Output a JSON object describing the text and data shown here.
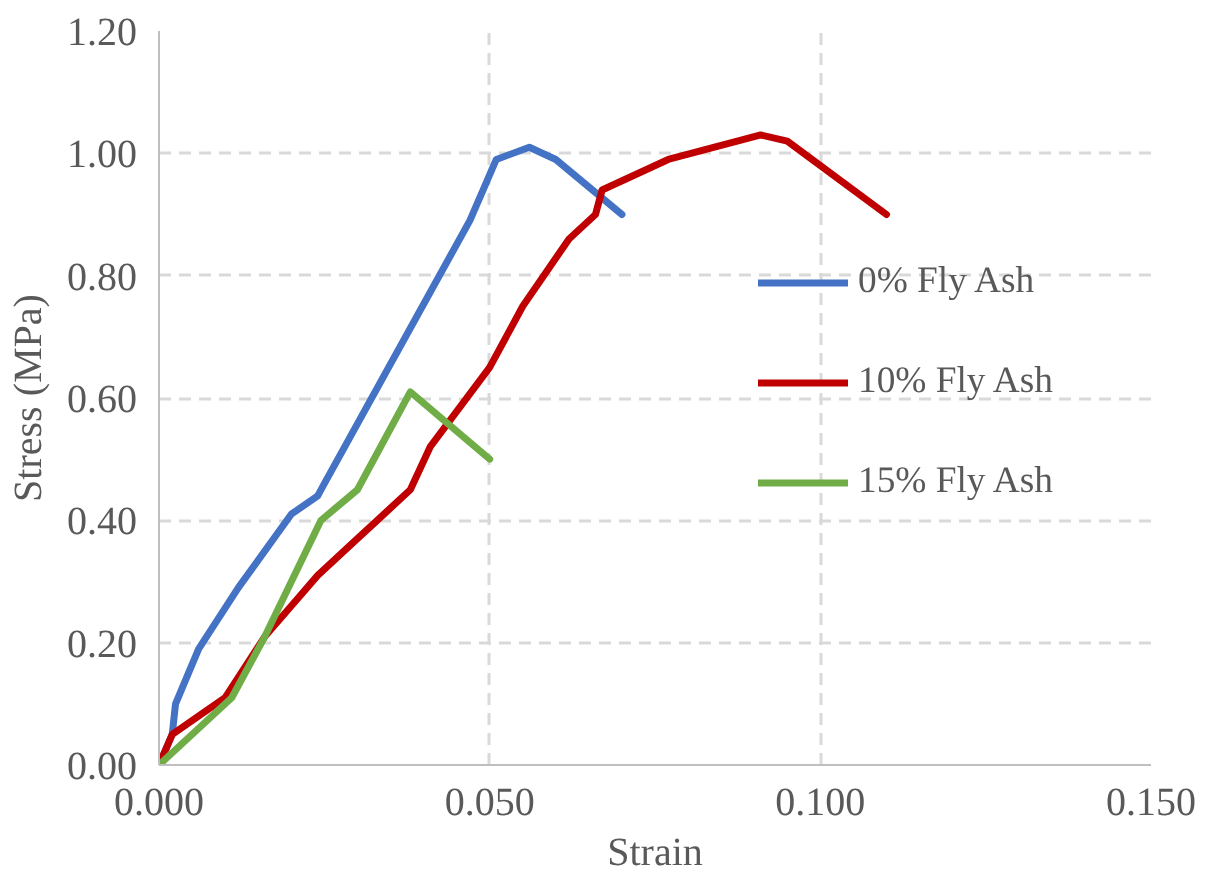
{
  "chart_data": {
    "type": "line",
    "xlabel": "Strain",
    "ylabel": "Stress (MPa)",
    "xlim": [
      0,
      0.15
    ],
    "ylim": [
      0,
      1.2
    ],
    "xticks": [
      {
        "value": 0,
        "label": "0.000"
      },
      {
        "value": 0.05,
        "label": "0.050"
      },
      {
        "value": 0.1,
        "label": "0.100"
      },
      {
        "value": 0.15,
        "label": "0.150"
      }
    ],
    "yticks": [
      {
        "value": 0,
        "label": "0.00"
      },
      {
        "value": 0.2,
        "label": "0.20"
      },
      {
        "value": 0.4,
        "label": "0.40"
      },
      {
        "value": 0.6,
        "label": "0.60"
      },
      {
        "value": 0.8,
        "label": "0.80"
      },
      {
        "value": 1.0,
        "label": "1.00"
      },
      {
        "value": 1.2,
        "label": "1.20"
      }
    ],
    "grid": true,
    "legend": "right",
    "marker": "none",
    "line_style": "solid",
    "series": [
      {
        "name": "0% Fly Ash",
        "color": "#4472c4",
        "x": [
          0,
          0.002,
          0.0025,
          0.006,
          0.012,
          0.02,
          0.024,
          0.025,
          0.047,
          0.049,
          0.051,
          0.056,
          0.06,
          0.07
        ],
        "values": [
          0,
          0.05,
          0.1,
          0.19,
          0.29,
          0.41,
          0.44,
          0.46,
          0.89,
          0.94,
          0.99,
          1.01,
          0.99,
          0.9
        ]
      },
      {
        "name": "10% Fly Ash",
        "color": "#c00000",
        "x": [
          0,
          0.002,
          0.01,
          0.016,
          0.02,
          0.024,
          0.03,
          0.033,
          0.038,
          0.041,
          0.05,
          0.055,
          0.062,
          0.066,
          0.067,
          0.077,
          0.091,
          0.095,
          0.11
        ],
        "values": [
          0,
          0.05,
          0.11,
          0.21,
          0.26,
          0.31,
          0.37,
          0.4,
          0.45,
          0.52,
          0.65,
          0.75,
          0.86,
          0.9,
          0.94,
          0.99,
          1.03,
          1.02,
          0.9
        ]
      },
      {
        "name": "15% Fly Ash",
        "color": "#70ad47",
        "x": [
          0,
          0.011,
          0.016,
          0.0245,
          0.03,
          0.037,
          0.038,
          0.05
        ],
        "values": [
          0,
          0.11,
          0.21,
          0.4,
          0.45,
          0.59,
          0.61,
          0.5
        ]
      }
    ]
  }
}
